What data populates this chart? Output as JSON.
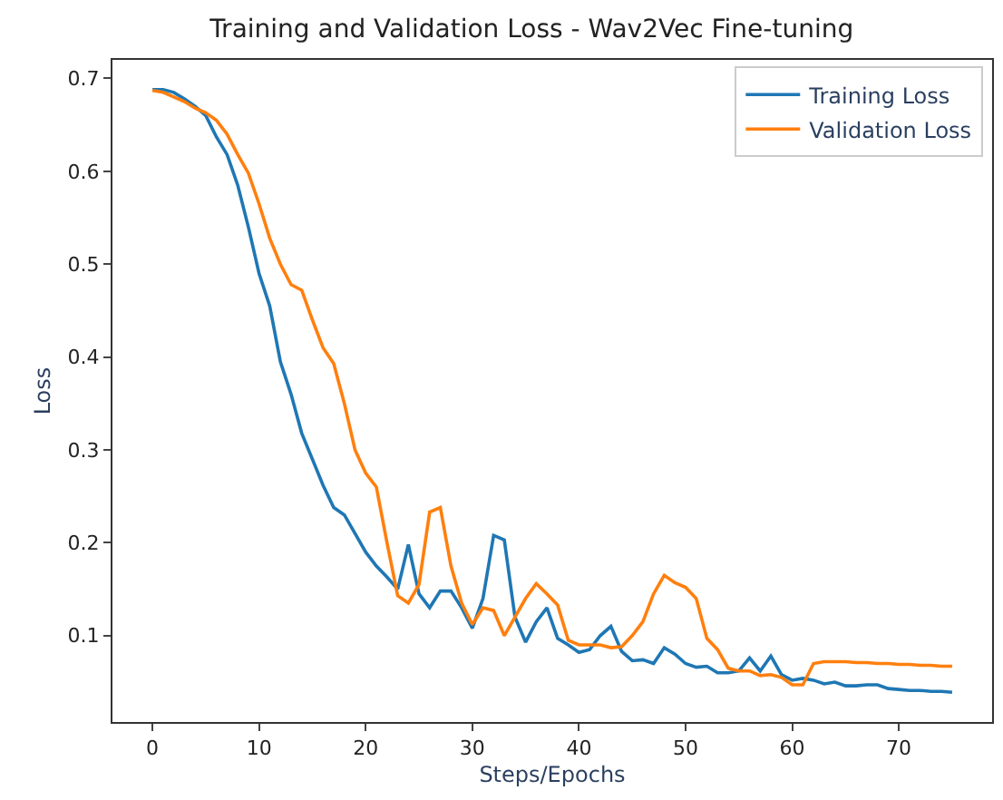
{
  "chart_data": {
    "type": "line",
    "title": "Training and Validation Loss - Wav2Vec Fine-tuning",
    "xlabel": "Steps/Epochs",
    "ylabel": "Loss",
    "x": [
      0,
      1,
      2,
      3,
      4,
      5,
      6,
      7,
      8,
      9,
      10,
      11,
      12,
      13,
      14,
      15,
      16,
      17,
      18,
      19,
      20,
      21,
      22,
      23,
      24,
      25,
      26,
      27,
      28,
      29,
      30,
      31,
      32,
      33,
      34,
      35,
      36,
      37,
      38,
      39,
      40,
      41,
      42,
      43,
      44,
      45,
      46,
      47,
      48,
      49,
      50,
      51,
      52,
      53,
      54,
      55,
      56,
      57,
      58,
      59,
      60,
      61,
      62,
      63,
      64,
      65,
      66,
      67,
      68,
      69,
      70,
      71,
      72,
      73,
      74,
      75
    ],
    "series": [
      {
        "name": "Training Loss",
        "color": "#1f77b4",
        "values": [
          0.688,
          0.688,
          0.685,
          0.678,
          0.67,
          0.66,
          0.637,
          0.618,
          0.585,
          0.54,
          0.49,
          0.455,
          0.395,
          0.36,
          0.318,
          0.29,
          0.262,
          0.238,
          0.23,
          0.21,
          0.19,
          0.175,
          0.163,
          0.15,
          0.198,
          0.145,
          0.13,
          0.148,
          0.148,
          0.13,
          0.108,
          0.14,
          0.208,
          0.203,
          0.12,
          0.093,
          0.115,
          0.13,
          0.097,
          0.09,
          0.082,
          0.085,
          0.1,
          0.11,
          0.083,
          0.073,
          0.074,
          0.07,
          0.087,
          0.08,
          0.07,
          0.066,
          0.067,
          0.06,
          0.06,
          0.062,
          0.076,
          0.062,
          0.078,
          0.058,
          0.052,
          0.054,
          0.052,
          0.048,
          0.05,
          0.046,
          0.046,
          0.047,
          0.047,
          0.043,
          0.042,
          0.041,
          0.041,
          0.04,
          0.04,
          0.039
        ]
      },
      {
        "name": "Validation Loss",
        "color": "#ff7f0e",
        "values": [
          0.687,
          0.685,
          0.68,
          0.675,
          0.668,
          0.663,
          0.655,
          0.64,
          0.618,
          0.598,
          0.565,
          0.528,
          0.5,
          0.478,
          0.472,
          0.44,
          0.41,
          0.393,
          0.35,
          0.3,
          0.275,
          0.26,
          0.2,
          0.143,
          0.135,
          0.155,
          0.233,
          0.238,
          0.175,
          0.135,
          0.112,
          0.13,
          0.127,
          0.1,
          0.12,
          0.14,
          0.156,
          0.145,
          0.133,
          0.095,
          0.09,
          0.09,
          0.09,
          0.087,
          0.088,
          0.1,
          0.115,
          0.145,
          0.165,
          0.157,
          0.152,
          0.14,
          0.097,
          0.085,
          0.065,
          0.062,
          0.062,
          0.057,
          0.058,
          0.055,
          0.047,
          0.047,
          0.07,
          0.072,
          0.072,
          0.072,
          0.071,
          0.071,
          0.07,
          0.07,
          0.069,
          0.069,
          0.068,
          0.068,
          0.067,
          0.067
        ]
      }
    ],
    "xlim": [
      -3.75,
      78.75
    ],
    "xticks": [
      0,
      10,
      20,
      30,
      40,
      50,
      60,
      70
    ],
    "ylim": [
      0.007,
      0.72
    ],
    "yticks": [
      0.1,
      0.2,
      0.3,
      0.4,
      0.5,
      0.6,
      0.7
    ],
    "legend": "top right",
    "marker": "none",
    "line_style": "solid"
  }
}
